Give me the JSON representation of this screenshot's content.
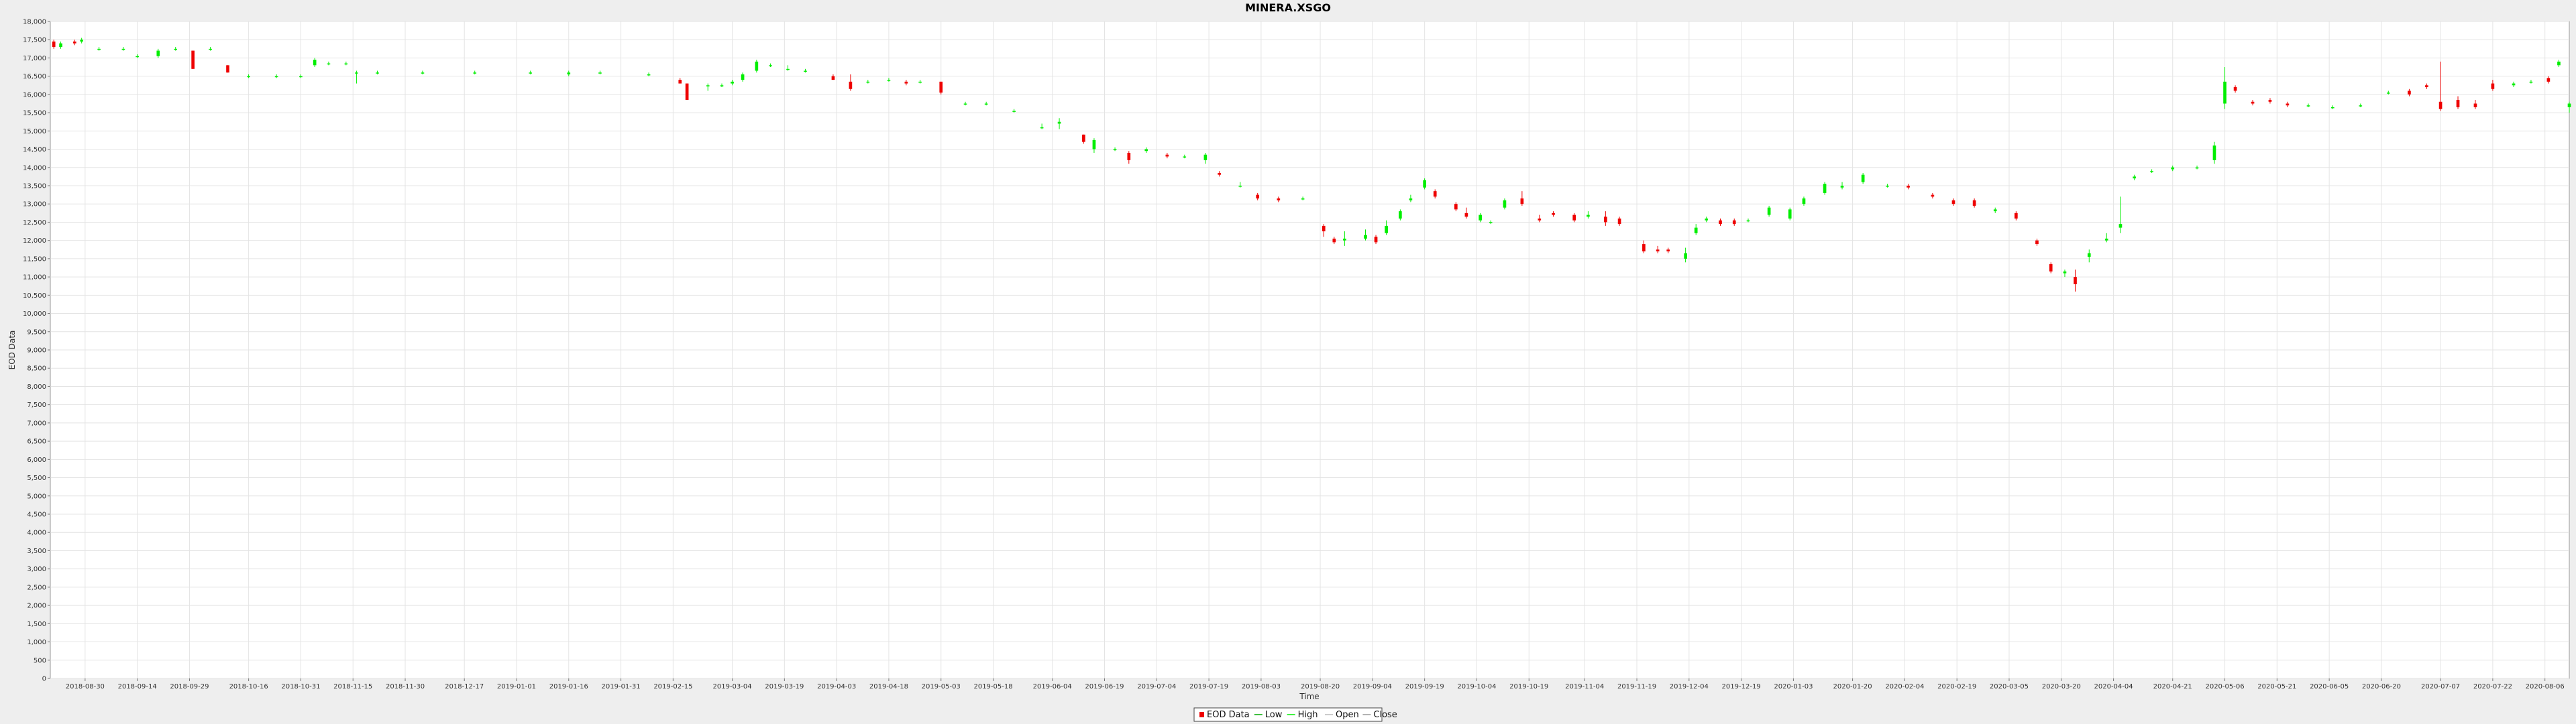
{
  "chart_data": {
    "type": "candlestick",
    "title": "MINERA.XSGO",
    "xlabel": "Time",
    "ylabel": "EOD Data",
    "ylim": [
      0,
      18000
    ],
    "y_ticks": [
      0,
      500,
      1000,
      1500,
      2000,
      2500,
      3000,
      3500,
      4000,
      4500,
      5000,
      5500,
      6000,
      6500,
      7000,
      7500,
      8000,
      8500,
      9000,
      9500,
      10000,
      10500,
      11000,
      11500,
      12000,
      12500,
      13000,
      13500,
      14000,
      14500,
      15000,
      15500,
      16000,
      16500,
      17000,
      17500,
      18000
    ],
    "y_tick_labels": [
      "0",
      "500",
      "1,000",
      "1,500",
      "2,000",
      "2,500",
      "3,000",
      "3,500",
      "4,000",
      "4,500",
      "5,000",
      "5,500",
      "6,000",
      "6,500",
      "7,000",
      "7,500",
      "8,000",
      "8,500",
      "9,000",
      "9,500",
      "10,000",
      "10,500",
      "11,000",
      "11,500",
      "12,000",
      "12,500",
      "13,000",
      "13,500",
      "14,000",
      "14,500",
      "15,000",
      "15,500",
      "16,000",
      "16,500",
      "17,000",
      "17,500",
      "18,000"
    ],
    "x_range": [
      "2018-08-20",
      "2020-08-13"
    ],
    "x_ticks": [
      "2018-08-30",
      "2018-09-14",
      "2018-09-29",
      "2018-10-16",
      "2018-10-31",
      "2018-11-15",
      "2018-11-30",
      "2018-12-17",
      "2019-01-01",
      "2019-01-16",
      "2019-01-31",
      "2019-02-15",
      "2019-03-04",
      "2019-03-19",
      "2019-04-03",
      "2019-04-18",
      "2019-05-03",
      "2019-05-18",
      "2019-06-04",
      "2019-06-19",
      "2019-07-04",
      "2019-07-19",
      "2019-08-03",
      "2019-08-20",
      "2019-09-04",
      "2019-09-19",
      "2019-10-04",
      "2019-10-19",
      "2019-11-04",
      "2019-11-19",
      "2019-12-04",
      "2019-12-19",
      "2020-01-03",
      "2020-01-20",
      "2020-02-04",
      "2020-02-19",
      "2020-03-05",
      "2020-03-20",
      "2020-04-04",
      "2020-04-21",
      "2020-05-06",
      "2020-05-21",
      "2020-06-05",
      "2020-06-20",
      "2020-07-07",
      "2020-07-22",
      "2020-08-06"
    ],
    "grid": true,
    "legend_position": "bottom-center",
    "legend": [
      "EOD Data",
      "Low",
      "High",
      "Open",
      "Close"
    ],
    "colors": {
      "up": "#00ee00",
      "down": "#ee0000",
      "background": "#ffffff",
      "grid": "#e4e4e4"
    },
    "series": [
      {
        "name": "EOD Data",
        "points": [
          [
            "2018-08-21",
            17450,
            17300,
            17500,
            17250
          ],
          [
            "2018-08-23",
            17300,
            17400,
            17450,
            17250
          ],
          [
            "2018-08-27",
            17450,
            17400,
            17500,
            17350
          ],
          [
            "2018-08-29",
            17450,
            17500,
            17550,
            17400
          ],
          [
            "2018-09-03",
            17250,
            17250,
            17300,
            17200
          ],
          [
            "2018-09-10",
            17250,
            17250,
            17300,
            17200
          ],
          [
            "2018-09-14",
            17050,
            17050,
            17100,
            17000
          ],
          [
            "2018-09-20",
            17050,
            17200,
            17250,
            17000
          ],
          [
            "2018-09-25",
            17250,
            17250,
            17300,
            17200
          ],
          [
            "2018-09-30",
            17200,
            16700,
            17200,
            16700
          ],
          [
            "2018-10-05",
            17250,
            17250,
            17300,
            17200
          ],
          [
            "2018-10-10",
            16800,
            16600,
            16800,
            16600
          ],
          [
            "2018-10-16",
            16500,
            16500,
            16550,
            16450
          ],
          [
            "2018-10-24",
            16500,
            16500,
            16550,
            16450
          ],
          [
            "2018-10-31",
            16500,
            16500,
            16550,
            16450
          ],
          [
            "2018-11-04",
            16800,
            16950,
            17000,
            16750
          ],
          [
            "2018-11-08",
            16850,
            16850,
            16900,
            16800
          ],
          [
            "2018-11-13",
            16850,
            16850,
            16900,
            16800
          ],
          [
            "2018-11-16",
            16600,
            16600,
            16650,
            16300
          ],
          [
            "2018-11-22",
            16600,
            16600,
            16650,
            16550
          ],
          [
            "2018-12-05",
            16600,
            16600,
            16650,
            16550
          ],
          [
            "2018-12-20",
            16600,
            16600,
            16650,
            16550
          ],
          [
            "2019-01-05",
            16600,
            16600,
            16650,
            16550
          ],
          [
            "2019-01-16",
            16550,
            16600,
            16650,
            16500
          ],
          [
            "2019-01-25",
            16600,
            16600,
            16650,
            16550
          ],
          [
            "2019-02-08",
            16550,
            16550,
            16600,
            16500
          ],
          [
            "2019-02-17",
            16400,
            16300,
            16450,
            16300
          ],
          [
            "2019-02-19",
            16300,
            15850,
            16300,
            15850
          ],
          [
            "2019-02-25",
            16250,
            16250,
            16300,
            16100
          ],
          [
            "2019-03-01",
            16250,
            16250,
            16300,
            16200
          ],
          [
            "2019-03-04",
            16300,
            16350,
            16400,
            16250
          ],
          [
            "2019-03-07",
            16400,
            16550,
            16600,
            16350
          ],
          [
            "2019-03-11",
            16650,
            16900,
            16950,
            16600
          ],
          [
            "2019-03-15",
            16800,
            16800,
            16850,
            16750
          ],
          [
            "2019-03-20",
            16700,
            16700,
            16800,
            16650
          ],
          [
            "2019-03-25",
            16650,
            16650,
            16700,
            16600
          ],
          [
            "2019-04-02",
            16500,
            16400,
            16550,
            16400
          ],
          [
            "2019-04-07",
            16350,
            16150,
            16550,
            16100
          ],
          [
            "2019-04-12",
            16350,
            16350,
            16400,
            16300
          ],
          [
            "2019-04-18",
            16400,
            16400,
            16450,
            16350
          ],
          [
            "2019-04-23",
            16350,
            16300,
            16400,
            16250
          ],
          [
            "2019-04-27",
            16350,
            16350,
            16400,
            16300
          ],
          [
            "2019-05-03",
            16350,
            16050,
            16350,
            16000
          ],
          [
            "2019-05-10",
            15750,
            15750,
            15800,
            15700
          ],
          [
            "2019-05-16",
            15750,
            15750,
            15800,
            15700
          ],
          [
            "2019-05-24",
            15550,
            15550,
            15600,
            15500
          ],
          [
            "2019-06-01",
            15100,
            15100,
            15200,
            15050
          ],
          [
            "2019-06-06",
            15200,
            15250,
            15350,
            15050
          ],
          [
            "2019-06-13",
            14900,
            14700,
            14900,
            14650
          ],
          [
            "2019-06-16",
            14500,
            14750,
            14800,
            14400
          ],
          [
            "2019-06-22",
            14500,
            14500,
            14550,
            14450
          ],
          [
            "2019-06-26",
            14400,
            14200,
            14450,
            14100
          ],
          [
            "2019-07-01",
            14450,
            14500,
            14550,
            14400
          ],
          [
            "2019-07-07",
            14350,
            14300,
            14400,
            14250
          ],
          [
            "2019-07-12",
            14300,
            14300,
            14350,
            14250
          ],
          [
            "2019-07-18",
            14200,
            14350,
            14400,
            14100
          ],
          [
            "2019-07-22",
            13850,
            13800,
            13900,
            13750
          ],
          [
            "2019-07-28",
            13500,
            13500,
            13600,
            13450
          ],
          [
            "2019-08-02",
            13250,
            13150,
            13300,
            13100
          ],
          [
            "2019-08-08",
            13150,
            13100,
            13200,
            13050
          ],
          [
            "2019-08-15",
            13150,
            13150,
            13200,
            13100
          ],
          [
            "2019-08-21",
            12400,
            12250,
            12450,
            12100
          ],
          [
            "2019-08-24",
            12050,
            11950,
            12100,
            11900
          ],
          [
            "2019-08-27",
            12000,
            12050,
            12250,
            11850
          ],
          [
            "2019-09-02",
            12050,
            12150,
            12300,
            12000
          ],
          [
            "2019-09-05",
            12100,
            11950,
            12150,
            11900
          ],
          [
            "2019-09-08",
            12200,
            12400,
            12550,
            12150
          ],
          [
            "2019-09-12",
            12600,
            12800,
            12850,
            12550
          ],
          [
            "2019-09-15",
            13100,
            13150,
            13250,
            13050
          ],
          [
            "2019-09-19",
            13450,
            13650,
            13700,
            13400
          ],
          [
            "2019-09-22",
            13350,
            13200,
            13400,
            13150
          ],
          [
            "2019-09-28",
            13000,
            12850,
            13050,
            12800
          ],
          [
            "2019-10-01",
            12750,
            12650,
            12900,
            12600
          ],
          [
            "2019-10-05",
            12550,
            12700,
            12750,
            12500
          ],
          [
            "2019-10-08",
            12500,
            12500,
            12550,
            12450
          ],
          [
            "2019-10-12",
            12900,
            13100,
            13150,
            12850
          ],
          [
            "2019-10-17",
            13150,
            13000,
            13350,
            12950
          ],
          [
            "2019-10-22",
            12600,
            12550,
            12700,
            12500
          ],
          [
            "2019-10-26",
            12750,
            12700,
            12800,
            12650
          ],
          [
            "2019-11-01",
            12700,
            12550,
            12750,
            12500
          ],
          [
            "2019-11-05",
            12650,
            12700,
            12800,
            12600
          ],
          [
            "2019-11-10",
            12650,
            12500,
            12800,
            12400
          ],
          [
            "2019-11-14",
            12600,
            12450,
            12650,
            12400
          ],
          [
            "2019-11-21",
            11900,
            11700,
            12000,
            11650
          ],
          [
            "2019-11-25",
            11750,
            11700,
            11850,
            11650
          ],
          [
            "2019-11-28",
            11750,
            11700,
            11800,
            11650
          ],
          [
            "2019-12-03",
            11500,
            11650,
            11800,
            11400
          ],
          [
            "2019-12-06",
            12200,
            12350,
            12450,
            12150
          ],
          [
            "2019-12-09",
            12550,
            12600,
            12650,
            12500
          ],
          [
            "2019-12-13",
            12550,
            12450,
            12600,
            12400
          ],
          [
            "2019-12-17",
            12550,
            12450,
            12600,
            12400
          ],
          [
            "2019-12-21",
            12550,
            12550,
            12600,
            12500
          ],
          [
            "2019-12-27",
            12700,
            12900,
            12950,
            12650
          ],
          [
            "2020-01-02",
            12600,
            12850,
            12900,
            12550
          ],
          [
            "2020-01-06",
            13000,
            13150,
            13200,
            12950
          ],
          [
            "2020-01-12",
            13300,
            13550,
            13600,
            13250
          ],
          [
            "2020-01-17",
            13450,
            13500,
            13600,
            13400
          ],
          [
            "2020-01-23",
            13600,
            13800,
            13850,
            13550
          ],
          [
            "2020-01-30",
            13500,
            13500,
            13550,
            13450
          ],
          [
            "2020-02-05",
            13500,
            13450,
            13550,
            13400
          ],
          [
            "2020-02-12",
            13250,
            13200,
            13300,
            13150
          ],
          [
            "2020-02-18",
            13100,
            13000,
            13150,
            12950
          ],
          [
            "2020-02-24",
            13100,
            12950,
            13150,
            12900
          ],
          [
            "2020-03-01",
            12800,
            12850,
            12900,
            12750
          ],
          [
            "2020-03-07",
            12750,
            12600,
            12800,
            12550
          ],
          [
            "2020-03-13",
            12000,
            11900,
            12050,
            11850
          ],
          [
            "2020-03-17",
            11350,
            11150,
            11400,
            11100
          ],
          [
            "2020-03-21",
            11100,
            11150,
            11200,
            11000
          ],
          [
            "2020-03-24",
            11000,
            10800,
            11200,
            10600
          ],
          [
            "2020-03-28",
            11550,
            11650,
            11750,
            11400
          ],
          [
            "2020-04-02",
            12000,
            12050,
            12200,
            11950
          ],
          [
            "2020-04-06",
            12350,
            12450,
            13200,
            12200
          ],
          [
            "2020-04-10",
            13700,
            13750,
            13800,
            13650
          ],
          [
            "2020-04-15",
            13900,
            13900,
            13950,
            13850
          ],
          [
            "2020-04-21",
            13950,
            14000,
            14050,
            13900
          ],
          [
            "2020-04-28",
            14000,
            14000,
            14050,
            13950
          ],
          [
            "2020-05-03",
            14200,
            14600,
            14700,
            14100
          ],
          [
            "2020-05-06",
            15750,
            16350,
            16750,
            15600
          ],
          [
            "2020-05-09",
            16200,
            16100,
            16250,
            16050
          ],
          [
            "2020-05-14",
            15800,
            15750,
            15850,
            15700
          ],
          [
            "2020-05-19",
            15850,
            15800,
            15900,
            15750
          ],
          [
            "2020-05-24",
            15750,
            15700,
            15800,
            15650
          ],
          [
            "2020-05-30",
            15700,
            15700,
            15750,
            15650
          ],
          [
            "2020-06-06",
            15650,
            15650,
            15700,
            15600
          ],
          [
            "2020-06-14",
            15700,
            15700,
            15750,
            15650
          ],
          [
            "2020-06-22",
            16050,
            16050,
            16100,
            16000
          ],
          [
            "2020-06-28",
            16100,
            16000,
            16150,
            15950
          ],
          [
            "2020-07-03",
            16250,
            16200,
            16300,
            16150
          ],
          [
            "2020-07-07",
            15800,
            15600,
            16900,
            15550
          ],
          [
            "2020-07-12",
            15850,
            15650,
            15950,
            15600
          ],
          [
            "2020-07-17",
            15750,
            15650,
            15850,
            15600
          ],
          [
            "2020-07-22",
            16300,
            16150,
            16400,
            16100
          ],
          [
            "2020-07-28",
            16250,
            16300,
            16350,
            16200
          ],
          [
            "2020-08-02",
            16350,
            16350,
            16400,
            16300
          ],
          [
            "2020-08-07",
            16450,
            16350,
            16500,
            16300
          ],
          [
            "2020-08-10",
            16800,
            16900,
            16950,
            16750
          ],
          [
            "2020-08-13",
            15650,
            15750,
            15800,
            15500
          ]
        ]
      }
    ]
  }
}
